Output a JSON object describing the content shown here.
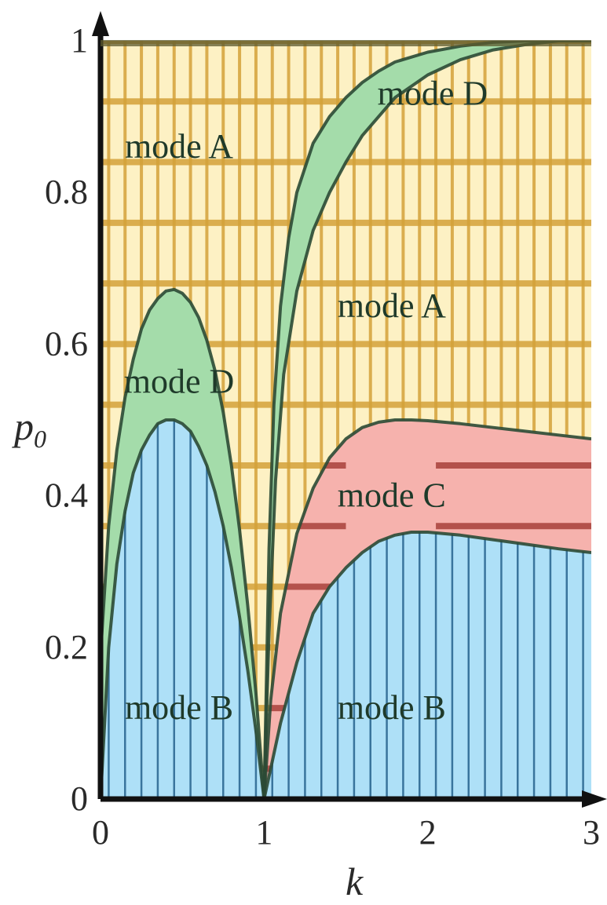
{
  "chart_data": {
    "type": "area",
    "xlabel": "k",
    "ylabel": "p",
    "ylabel_sub": "0",
    "xlim": [
      0,
      3
    ],
    "ylim": [
      0,
      1
    ],
    "x_ticks": [
      "0",
      "1",
      "2",
      "3"
    ],
    "y_ticks": [
      "0",
      "0.2",
      "0.4",
      "0.6",
      "0.8",
      "1"
    ],
    "colors": {
      "mode_A": "#fdf1c4",
      "mode_A_grid": "#d4a23a",
      "mode_B": "#aee0f7",
      "mode_B_lines": "#1d5a86",
      "mode_C": "#f6b2ad",
      "mode_C_stripes": "#a8413b",
      "mode_D": "#a4dcaa",
      "boundary": "#2b4a35",
      "axis": "#111111"
    },
    "regions": [
      {
        "label": "mode A",
        "at": [
          0.48,
          0.86
        ]
      },
      {
        "label": "mode D",
        "at": [
          2.03,
          0.93
        ]
      },
      {
        "label": "mode A",
        "at": [
          1.78,
          0.65
        ]
      },
      {
        "label": "mode D",
        "at": [
          0.48,
          0.55
        ]
      },
      {
        "label": "mode C",
        "at": [
          1.78,
          0.4
        ]
      },
      {
        "label": "mode B",
        "at": [
          0.48,
          0.12
        ]
      },
      {
        "label": "mode B",
        "at": [
          1.78,
          0.12
        ]
      }
    ],
    "boundaries": {
      "left_upper": [
        [
          0,
          0.19
        ],
        [
          0.05,
          0.36
        ],
        [
          0.1,
          0.46
        ],
        [
          0.15,
          0.53
        ],
        [
          0.2,
          0.58
        ],
        [
          0.25,
          0.62
        ],
        [
          0.3,
          0.645
        ],
        [
          0.35,
          0.66
        ],
        [
          0.4,
          0.67
        ],
        [
          0.45,
          0.672
        ],
        [
          0.5,
          0.667
        ],
        [
          0.55,
          0.655
        ],
        [
          0.6,
          0.635
        ],
        [
          0.65,
          0.605
        ],
        [
          0.7,
          0.565
        ],
        [
          0.75,
          0.51
        ],
        [
          0.8,
          0.44
        ],
        [
          0.85,
          0.355
        ],
        [
          0.9,
          0.255
        ],
        [
          0.95,
          0.14
        ],
        [
          1.0,
          0.0
        ]
      ],
      "left_lower": [
        [
          0,
          0.0
        ],
        [
          0.05,
          0.2
        ],
        [
          0.1,
          0.31
        ],
        [
          0.15,
          0.38
        ],
        [
          0.2,
          0.43
        ],
        [
          0.25,
          0.46
        ],
        [
          0.3,
          0.48
        ],
        [
          0.35,
          0.495
        ],
        [
          0.4,
          0.5
        ],
        [
          0.45,
          0.5
        ],
        [
          0.5,
          0.495
        ],
        [
          0.55,
          0.485
        ],
        [
          0.6,
          0.465
        ],
        [
          0.65,
          0.44
        ],
        [
          0.7,
          0.405
        ],
        [
          0.75,
          0.36
        ],
        [
          0.8,
          0.305
        ],
        [
          0.85,
          0.24
        ],
        [
          0.9,
          0.17
        ],
        [
          0.95,
          0.09
        ],
        [
          1.0,
          0.0
        ]
      ],
      "right_upper": [
        [
          1.0,
          0.0
        ],
        [
          1.03,
          0.22
        ],
        [
          1.07,
          0.42
        ],
        [
          1.12,
          0.56
        ],
        [
          1.2,
          0.67
        ],
        [
          1.3,
          0.75
        ],
        [
          1.4,
          0.8
        ],
        [
          1.5,
          0.84
        ],
        [
          1.6,
          0.875
        ],
        [
          1.7,
          0.9
        ],
        [
          1.8,
          0.925
        ],
        [
          2.0,
          0.955
        ],
        [
          2.2,
          0.975
        ],
        [
          2.4,
          0.988
        ],
        [
          2.6,
          0.995
        ],
        [
          2.8,
          1.0
        ],
        [
          3.0,
          1.0
        ]
      ],
      "right_middle": [
        [
          1.0,
          0.0
        ],
        [
          1.04,
          0.13
        ],
        [
          1.1,
          0.245
        ],
        [
          1.2,
          0.35
        ],
        [
          1.3,
          0.41
        ],
        [
          1.4,
          0.45
        ],
        [
          1.5,
          0.475
        ],
        [
          1.6,
          0.49
        ],
        [
          1.7,
          0.497
        ],
        [
          1.8,
          0.5
        ],
        [
          1.9,
          0.5
        ],
        [
          2.0,
          0.499
        ],
        [
          2.2,
          0.495
        ],
        [
          2.4,
          0.49
        ],
        [
          2.6,
          0.485
        ],
        [
          2.8,
          0.48
        ],
        [
          3.0,
          0.475
        ]
      ],
      "right_lower": [
        [
          1.0,
          0.0
        ],
        [
          1.05,
          0.05
        ],
        [
          1.1,
          0.1
        ],
        [
          1.2,
          0.18
        ],
        [
          1.3,
          0.245
        ],
        [
          1.4,
          0.28
        ],
        [
          1.5,
          0.305
        ],
        [
          1.6,
          0.325
        ],
        [
          1.7,
          0.34
        ],
        [
          1.8,
          0.348
        ],
        [
          1.9,
          0.352
        ],
        [
          2.0,
          0.352
        ],
        [
          2.2,
          0.348
        ],
        [
          2.4,
          0.342
        ],
        [
          2.6,
          0.336
        ],
        [
          2.8,
          0.33
        ],
        [
          3.0,
          0.325
        ]
      ],
      "right_top_edge": [
        [
          1.0,
          0.0
        ],
        [
          1.03,
          0.33
        ],
        [
          1.06,
          0.52
        ],
        [
          1.1,
          0.65
        ],
        [
          1.15,
          0.74
        ],
        [
          1.2,
          0.8
        ],
        [
          1.3,
          0.865
        ],
        [
          1.4,
          0.9
        ],
        [
          1.5,
          0.925
        ],
        [
          1.6,
          0.945
        ],
        [
          1.7,
          0.96
        ],
        [
          1.8,
          0.972
        ],
        [
          2.0,
          0.985
        ],
        [
          2.2,
          0.993
        ],
        [
          2.4,
          0.998
        ],
        [
          2.6,
          1.0
        ],
        [
          3.0,
          1.0
        ]
      ]
    },
    "grid": true
  }
}
